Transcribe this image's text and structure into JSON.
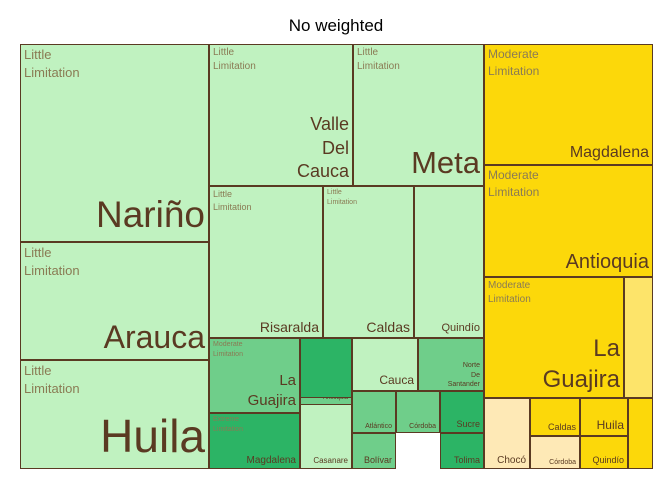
{
  "chart_data": {
    "type": "treemap",
    "title": "No weighted",
    "colors": {
      "Little Limitation": "#c0f2c0",
      "Moderate Limitation": "#fcd80a",
      "Moderate Limitation (dark green)": "#6fce8a",
      "Extreme Limitation": "#2cb465",
      "Extreme Limitation (light)": "#fee9b6",
      "border": "#5a3a22",
      "label": "#5a3a22",
      "group_label": "#8a7b54"
    },
    "groups": [
      {
        "group": "Little Limitation",
        "tiles": [
          "Nariño",
          "Arauca",
          "Huila",
          "Valle Del Cauca",
          "Meta",
          "Risaralda",
          "Caldas",
          "Quindío"
        ]
      },
      {
        "group": "Moderate Limitation",
        "tiles": [
          "La Guajira",
          "Magdalena",
          "Antioquia",
          "Cauca",
          "Norte De Santander",
          "Atlántico",
          "Córdoba",
          "Sucre",
          "Bolívar",
          "Tolima"
        ]
      },
      {
        "group": "Extreme Limitation",
        "tiles": [
          "Magdalena",
          "Casanare",
          "Chocó",
          "Caldas",
          "Huila",
          "Quindío",
          "Córdoba"
        ]
      }
    ],
    "tiles": [
      {
        "name": "Nariño",
        "group": "Little Limitation",
        "color": "#c0f2c0"
      },
      {
        "name": "Arauca",
        "group": "Little Limitation",
        "color": "#c0f2c0"
      },
      {
        "name": "Huila",
        "group": "Little Limitation",
        "color": "#c0f2c0"
      },
      {
        "name": "Valle Del Cauca",
        "group": "Little Limitation",
        "color": "#c0f2c0"
      },
      {
        "name": "Meta",
        "group": "Little Limitation",
        "color": "#c0f2c0"
      },
      {
        "name": "Risaralda",
        "group": "Little Limitation",
        "color": "#c0f2c0"
      },
      {
        "name": "Caldas",
        "group": "Little Limitation",
        "color": "#c0f2c0"
      },
      {
        "name": "Quindío",
        "group": "",
        "color": "#c0f2c0"
      },
      {
        "name": "La Guajira",
        "group": "Moderate Limitation",
        "color": "#6fce8a"
      },
      {
        "name": "",
        "group": "",
        "color": "#2cb465"
      },
      {
        "name": "Cauca",
        "group": "",
        "color": "#c0f2c0"
      },
      {
        "name": "Norte De Santander",
        "group": "",
        "color": "#6fce8a"
      },
      {
        "name": "Antioquia",
        "group": "",
        "color": "#6fce8a"
      },
      {
        "name": "Magdalena",
        "group": "Extreme Limitation",
        "color": "#2cb465"
      },
      {
        "name": "Casanare",
        "group": "",
        "color": "#c0f2c0"
      },
      {
        "name": "Atlántico",
        "group": "",
        "color": "#6fce8a"
      },
      {
        "name": "Córdoba",
        "group": "",
        "color": "#6fce8a"
      },
      {
        "name": "Sucre",
        "group": "",
        "color": "#2cb465"
      },
      {
        "name": "Bolívar",
        "group": "",
        "color": "#6fce8a"
      },
      {
        "name": "Tolima",
        "group": "",
        "color": "#2cb465"
      },
      {
        "name": "Magdalena",
        "group": "Moderate Limitation",
        "color": "#fcd80a"
      },
      {
        "name": "Antioquia",
        "group": "Moderate Limitation",
        "color": "#fcd80a"
      },
      {
        "name": "La Guajira",
        "group": "Moderate Limitation",
        "color": "#fcd80a"
      },
      {
        "name": "",
        "group": "",
        "color": "#fde46a"
      },
      {
        "name": "Chocó",
        "group": "",
        "color": "#fee9b6"
      },
      {
        "name": "Caldas",
        "group": "",
        "color": "#fcd80a"
      },
      {
        "name": "Córdoba",
        "group": "",
        "color": "#fee9b6"
      },
      {
        "name": "Huila",
        "group": "",
        "color": "#fcd80a"
      },
      {
        "name": "Quindío",
        "group": "",
        "color": "#fcd80a"
      },
      {
        "name": "",
        "group": "",
        "color": "#fcd80a"
      }
    ]
  }
}
